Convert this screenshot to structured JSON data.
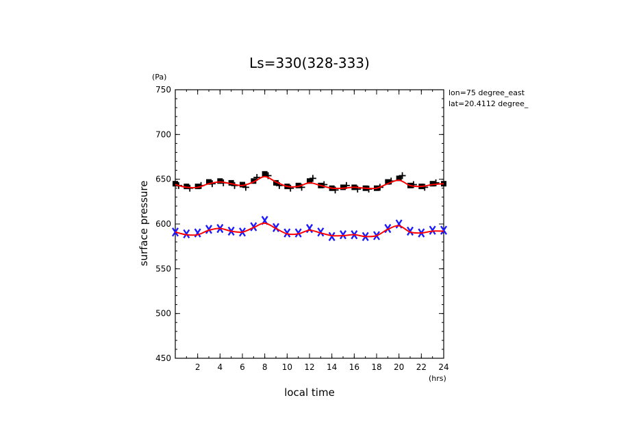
{
  "chart_data": {
    "type": "scatter",
    "title": "Ls=330(328-333)",
    "xlabel": "local time",
    "ylabel": "surface pressure",
    "xunit": "(hrs)",
    "yunit": "(Pa)",
    "xlim": [
      0,
      24
    ],
    "ylim": [
      450,
      750
    ],
    "xticks": [
      "2",
      "4",
      "6",
      "8",
      "10",
      "12",
      "14",
      "16",
      "18",
      "20",
      "22",
      "24"
    ],
    "yticks": [
      "450",
      "500",
      "550",
      "600",
      "650",
      "700",
      "750"
    ],
    "annotations": [
      "lon=75 degree_east",
      "lat=20.4112 degree_"
    ],
    "grid": false,
    "series": [
      {
        "marker": "square",
        "color": "#000000",
        "x": [
          0,
          1,
          2,
          3,
          4,
          5,
          6,
          7,
          8,
          9,
          10,
          11,
          12,
          13,
          14,
          15,
          16,
          17,
          18,
          19,
          20,
          21,
          22,
          23,
          24
        ],
        "values": [
          645,
          642,
          642,
          647,
          648,
          646,
          644,
          648,
          656,
          646,
          642,
          643,
          648,
          643,
          640,
          641,
          641,
          640,
          640,
          647,
          651,
          643,
          642,
          645,
          645
        ]
      },
      {
        "marker": "plus",
        "color": "#000000",
        "x": [
          0.3,
          1.3,
          2.3,
          3.3,
          4.3,
          5.3,
          6.3,
          7.3,
          8.3,
          9.3,
          10.3,
          11.3,
          12.3,
          13.3,
          14.3,
          15.3,
          16.3,
          17.3,
          18.3,
          19.3,
          20.3,
          21.3,
          22.3,
          23.3
        ],
        "values": [
          643,
          640,
          643,
          645,
          646,
          643,
          641,
          652,
          654,
          643,
          640,
          641,
          651,
          644,
          638,
          643,
          639,
          639,
          641,
          648,
          654,
          644,
          641,
          646
        ]
      },
      {
        "marker": "x",
        "color": "#1a1aff",
        "x": [
          0,
          1,
          2,
          3,
          4,
          5,
          6,
          7,
          8,
          9,
          10,
          11,
          12,
          13,
          14,
          15,
          16,
          17,
          18,
          19,
          20,
          21,
          22,
          23,
          24
        ],
        "values": [
          591,
          589,
          590,
          594,
          595,
          592,
          591,
          597,
          604,
          596,
          590,
          590,
          595,
          591,
          586,
          588,
          588,
          586,
          587,
          595,
          600,
          592,
          590,
          593,
          593
        ]
      },
      {
        "name": "fit",
        "type": "line",
        "color": "#ff0000",
        "x": [
          0,
          1,
          2,
          3,
          4,
          5,
          6,
          7,
          8,
          9,
          10,
          11,
          12,
          13,
          14,
          15,
          16,
          17,
          18,
          19,
          20,
          21,
          22,
          23,
          24
        ],
        "values": [
          644,
          641,
          641,
          645,
          647,
          645,
          643,
          647,
          653,
          647,
          642,
          642,
          646,
          643,
          640,
          640,
          641,
          640,
          640,
          645,
          649,
          643,
          642,
          644,
          645
        ]
      },
      {
        "name": "fit",
        "type": "line",
        "color": "#ff0000",
        "x": [
          0,
          1,
          2,
          3,
          4,
          5,
          6,
          7,
          8,
          9,
          10,
          11,
          12,
          13,
          14,
          15,
          16,
          17,
          18,
          19,
          20,
          21,
          22,
          23,
          24
        ],
        "values": [
          591,
          588,
          588,
          593,
          595,
          592,
          591,
          596,
          601,
          595,
          589,
          589,
          593,
          590,
          587,
          587,
          588,
          586,
          587,
          594,
          598,
          591,
          590,
          592,
          592
        ]
      }
    ]
  }
}
